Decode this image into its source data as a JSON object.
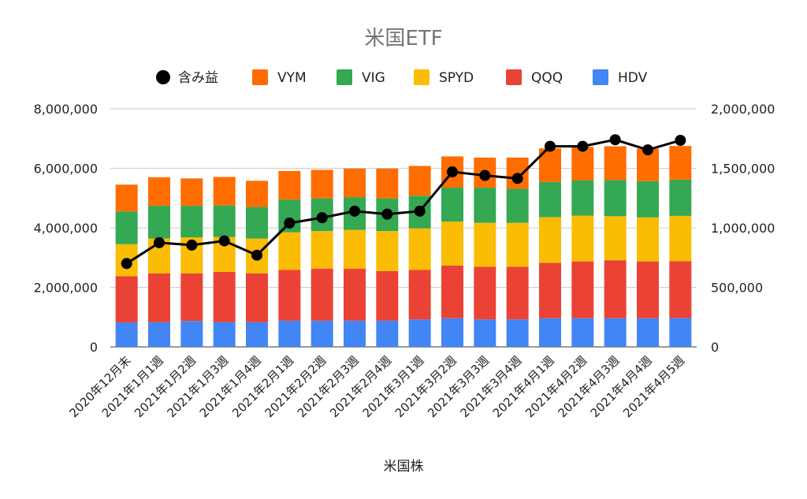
{
  "chart_data": {
    "type": "bar",
    "stacked": true,
    "title": "米国ETF",
    "xlabel": "米国株",
    "ylabel": "",
    "ylim": [
      0,
      8000000
    ],
    "y2lim": [
      0,
      2000000
    ],
    "yticks": [
      "0",
      "2,000,000",
      "4,000,000",
      "6,000,000",
      "8,000,000"
    ],
    "y2ticks": [
      "0",
      "500,000",
      "1,000,000",
      "1,500,000",
      "2,000,000"
    ],
    "grid": true,
    "legend_position": "top",
    "categories": [
      "2020年12月末",
      "2021年1月1週",
      "2021年1月2週",
      "2021年1月3週",
      "2021年1月4週",
      "2021年2月1週",
      "2021年2月2週",
      "2021年2月3週",
      "2021年2月4週",
      "2021年3月1週",
      "2021年3月2週",
      "2021年3月3週",
      "2021年3月4週",
      "2021年4月1週",
      "2021年4月2週",
      "2021年4月3週",
      "2021年4月4週",
      "2021年4月5週"
    ],
    "series": [
      {
        "name": "HDV",
        "color": "#4285F4",
        "values": [
          820000,
          830000,
          870000,
          830000,
          830000,
          880000,
          880000,
          880000,
          880000,
          920000,
          960000,
          920000,
          920000,
          960000,
          960000,
          960000,
          960000,
          970000
        ]
      },
      {
        "name": "QQQ",
        "color": "#EA4335",
        "values": [
          1550000,
          1640000,
          1600000,
          1690000,
          1640000,
          1710000,
          1750000,
          1750000,
          1670000,
          1670000,
          1770000,
          1770000,
          1770000,
          1860000,
          1910000,
          1950000,
          1910000,
          1910000
        ]
      },
      {
        "name": "SPYD",
        "color": "#FBBC04",
        "values": [
          1080000,
          1170000,
          1210000,
          1170000,
          1170000,
          1260000,
          1260000,
          1300000,
          1340000,
          1390000,
          1480000,
          1480000,
          1480000,
          1540000,
          1540000,
          1480000,
          1480000,
          1520000
        ]
      },
      {
        "name": "VIG",
        "color": "#34A853",
        "values": [
          1100000,
          1100000,
          1060000,
          1060000,
          1060000,
          1100000,
          1100000,
          1100000,
          1100000,
          1100000,
          1140000,
          1180000,
          1140000,
          1180000,
          1180000,
          1220000,
          1220000,
          1220000
        ]
      },
      {
        "name": "VYM",
        "color": "#FF6D01",
        "values": [
          900000,
          960000,
          920000,
          960000,
          880000,
          960000,
          960000,
          960000,
          1000000,
          1000000,
          1050000,
          1010000,
          1050000,
          1130000,
          1130000,
          1130000,
          1090000,
          1130000
        ]
      }
    ],
    "line_series": {
      "name": "含み益",
      "color": "#000000",
      "axis": "right",
      "values": [
        700000,
        875000,
        855000,
        890000,
        770000,
        1040000,
        1085000,
        1140000,
        1115000,
        1140000,
        1470000,
        1440000,
        1415000,
        1685000,
        1685000,
        1740000,
        1655000,
        1735000
      ]
    }
  }
}
